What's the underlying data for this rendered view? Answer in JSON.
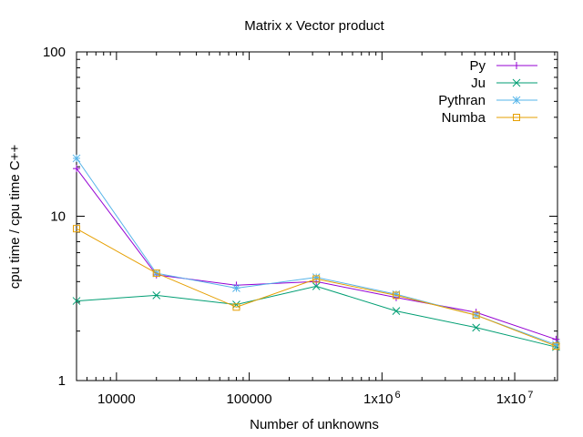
{
  "chart_data": {
    "type": "line",
    "title": "Matrix x Vector product",
    "xlabel": "Number of unknowns",
    "ylabel": "cpu time / cpu time C++",
    "xscale": "log",
    "yscale": "log",
    "xlim": [
      5000,
      21000000
    ],
    "ylim": [
      1,
      100
    ],
    "grid": false,
    "legend_position": "top-right",
    "xticks": [
      {
        "value": 10000,
        "label": "10000",
        "sup": ""
      },
      {
        "value": 100000,
        "label": "100000",
        "sup": ""
      },
      {
        "value": 1000000,
        "label": "1x10",
        "sup": "6"
      },
      {
        "value": 10000000,
        "label": "1x10",
        "sup": "7"
      }
    ],
    "yticks": [
      {
        "value": 1,
        "label": "1"
      },
      {
        "value": 10,
        "label": "10"
      },
      {
        "value": 100,
        "label": "100"
      }
    ],
    "x": [
      5000,
      20000,
      80000,
      320000,
      1280000,
      5120000,
      20480000
    ],
    "series": [
      {
        "name": "Py",
        "color": "#9400d3",
        "marker": "plus",
        "values": [
          19.5,
          4.4,
          3.8,
          4.0,
          3.2,
          2.6,
          1.78
        ]
      },
      {
        "name": "Ju",
        "color": "#009e73",
        "marker": "cross",
        "values": [
          3.05,
          3.3,
          2.9,
          3.75,
          2.65,
          2.1,
          1.6
        ]
      },
      {
        "name": "Pythran",
        "color": "#56b4e9",
        "marker": "star",
        "values": [
          22.5,
          4.5,
          3.65,
          4.25,
          3.35,
          2.5,
          1.65
        ]
      },
      {
        "name": "Numba",
        "color": "#e69f00",
        "marker": "square",
        "values": [
          8.4,
          4.5,
          2.8,
          4.15,
          3.3,
          2.5,
          1.62
        ]
      }
    ]
  }
}
